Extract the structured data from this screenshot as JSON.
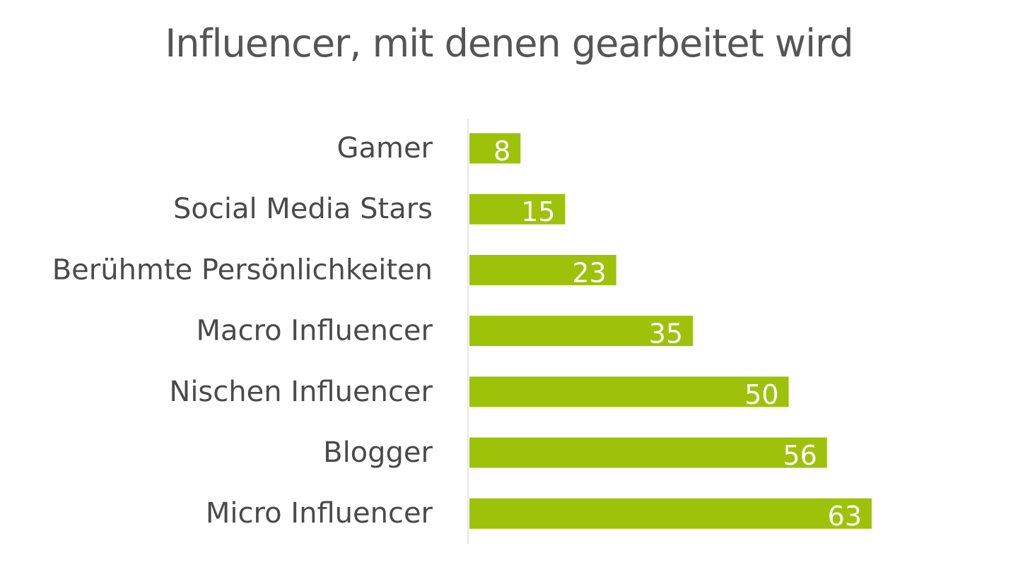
{
  "chart_data": {
    "type": "bar",
    "orientation": "horizontal",
    "title": "Influencer, mit denen gearbeitet wird",
    "categories": [
      "Gamer",
      "Social Media Stars",
      "Berühmte Persönlichkeiten",
      "Macro Influencer",
      "Nischen Influencer",
      "Blogger",
      "Micro Influencer"
    ],
    "values": [
      8,
      15,
      23,
      35,
      50,
      56,
      63
    ],
    "data_labels": [
      "8",
      "15",
      "23",
      "35",
      "50",
      "56",
      "63"
    ],
    "xlim": [
      0,
      63
    ],
    "grid": false,
    "legend": "none",
    "bar_color": "#9dc209",
    "axis_color": "#e6e6e6"
  }
}
